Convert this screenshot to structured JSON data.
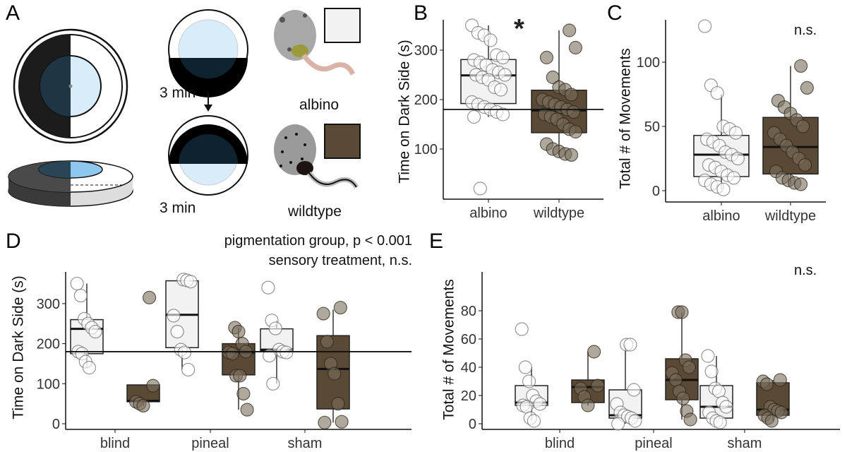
{
  "panel_a": {
    "label": "A",
    "time1": "3 min",
    "time2": "3 min",
    "albino": "albino",
    "wildtype": "wildtype"
  },
  "colors": {
    "albino": "#f2f2f2",
    "wildtype": "#5a4a35",
    "albino_point": "#ffffff",
    "wildtype_point": "#7a6e5c"
  },
  "chart_data": [
    {
      "panel": "B",
      "type": "box",
      "ylabel": "Time on Dark Side (s)",
      "categories": [
        "albino",
        "wildtype"
      ],
      "yticks": [
        100,
        200,
        300
      ],
      "ylim": [
        0,
        360
      ],
      "reference_line": 180,
      "annotation": "*",
      "series": [
        {
          "cat": "albino",
          "group": "albino",
          "q1": 192,
          "median": 249,
          "q3": 281,
          "wlo": 165,
          "whi": 350,
          "points": [
            350,
            335,
            330,
            320,
            290,
            285,
            280,
            275,
            270,
            260,
            255,
            250,
            250,
            245,
            240,
            225,
            220,
            195,
            190,
            185,
            180,
            175,
            170,
            165,
            20
          ]
        },
        {
          "cat": "wildtype",
          "group": "wildtype",
          "q1": 133,
          "median": 178,
          "q3": 219,
          "wlo": 88,
          "whi": 340,
          "points": [
            340,
            305,
            285,
            245,
            225,
            220,
            210,
            200,
            195,
            190,
            185,
            180,
            175,
            170,
            165,
            160,
            150,
            140,
            135,
            110,
            100,
            95,
            90,
            88
          ]
        }
      ]
    },
    {
      "panel": "C",
      "type": "box",
      "ylabel": "Total # of Movements",
      "categories": [
        "albino",
        "wildtype"
      ],
      "yticks": [
        0,
        50,
        100
      ],
      "ylim": [
        0,
        130
      ],
      "annotation": "n.s.",
      "series": [
        {
          "cat": "albino",
          "group": "albino",
          "q1": 11,
          "median": 28,
          "q3": 43,
          "wlo": 1,
          "whi": 75,
          "points": [
            128,
            82,
            76,
            50,
            48,
            45,
            40,
            38,
            35,
            30,
            28,
            25,
            20,
            18,
            15,
            12,
            10,
            8,
            5,
            3,
            1
          ]
        },
        {
          "cat": "wildtype",
          "group": "wildtype",
          "q1": 13,
          "median": 34,
          "q3": 57,
          "wlo": 5,
          "whi": 97,
          "points": [
            97,
            80,
            70,
            65,
            60,
            55,
            50,
            45,
            40,
            35,
            30,
            25,
            20,
            15,
            10,
            8,
            6,
            5
          ]
        }
      ]
    },
    {
      "panel": "D",
      "type": "box",
      "ylabel": "Time on Dark Side (s)",
      "categories": [
        "blind",
        "pineal",
        "sham"
      ],
      "yticks": [
        0,
        100,
        200,
        300
      ],
      "ylim": [
        0,
        370
      ],
      "reference_line": 180,
      "annotation": [
        "pigmentation group, p < 0.001",
        "sensory treatment, n.s."
      ],
      "series": [
        {
          "cat": "blind",
          "group": "albino",
          "q1": 175,
          "median": 237,
          "q3": 260,
          "wlo": 140,
          "whi": 350,
          "points": [
            350,
            320,
            262,
            250,
            240,
            230,
            180,
            175,
            155,
            140
          ]
        },
        {
          "cat": "blind",
          "group": "wildtype",
          "q1": 55,
          "median": 57,
          "q3": 97,
          "wlo": 45,
          "whi": 97,
          "points": [
            315,
            95,
            55,
            50,
            45
          ]
        },
        {
          "cat": "pineal",
          "group": "albino",
          "q1": 190,
          "median": 272,
          "q3": 357,
          "wlo": 135,
          "whi": 360,
          "points": [
            360,
            358,
            355,
            270,
            230,
            185,
            178,
            135
          ]
        },
        {
          "cat": "pineal",
          "group": "wildtype",
          "q1": 122,
          "median": 178,
          "q3": 200,
          "wlo": 35,
          "whi": 240,
          "points": [
            240,
            230,
            200,
            180,
            178,
            175,
            120,
            120,
            75,
            35
          ]
        },
        {
          "cat": "sham",
          "group": "albino",
          "q1": 182,
          "median": 185,
          "q3": 237,
          "wlo": 100,
          "whi": 258,
          "points": [
            340,
            258,
            238,
            185,
            180,
            178,
            170,
            100
          ]
        },
        {
          "cat": "sham",
          "group": "wildtype",
          "q1": 37,
          "median": 137,
          "q3": 220,
          "wlo": 3,
          "whi": 285,
          "points": [
            290,
            275,
            205,
            150,
            125,
            50,
            5,
            3
          ]
        }
      ]
    },
    {
      "panel": "E",
      "type": "box",
      "ylabel": "Total # of Movements",
      "categories": [
        "blind",
        "pineal",
        "sham"
      ],
      "yticks": [
        0,
        20,
        40,
        60,
        80
      ],
      "ylim": [
        0,
        82
      ],
      "annotation": "n.s.",
      "series": [
        {
          "cat": "blind",
          "group": "albino",
          "q1": 13,
          "median": 15,
          "q3": 27,
          "wlo": 2,
          "whi": 40,
          "points": [
            67,
            40,
            30,
            20,
            16,
            14,
            13,
            12,
            4,
            2
          ]
        },
        {
          "cat": "blind",
          "group": "wildtype",
          "q1": 15,
          "median": 26,
          "q3": 31,
          "wlo": 13,
          "whi": 51,
          "points": [
            51,
            27,
            25,
            19,
            13
          ]
        },
        {
          "cat": "pineal",
          "group": "albino",
          "q1": 4,
          "median": 6,
          "q3": 24,
          "wlo": 0,
          "whi": 56,
          "points": [
            56,
            56,
            24,
            14,
            8,
            6,
            5,
            4,
            2,
            0
          ]
        },
        {
          "cat": "pineal",
          "group": "wildtype",
          "q1": 17,
          "median": 31,
          "q3": 46,
          "wlo": 3,
          "whi": 79,
          "points": [
            79,
            79,
            45,
            40,
            36,
            31,
            23,
            18,
            9,
            3
          ]
        },
        {
          "cat": "sham",
          "group": "albino",
          "q1": 4,
          "median": 12,
          "q3": 27,
          "wlo": 1,
          "whi": 48,
          "points": [
            48,
            37,
            25,
            23,
            15,
            12,
            8,
            4,
            2,
            1
          ]
        },
        {
          "cat": "sham",
          "group": "wildtype",
          "q1": 6,
          "median": 10,
          "q3": 29,
          "wlo": 2,
          "whi": 31,
          "points": [
            31,
            30,
            28,
            12,
            10,
            9,
            8,
            6,
            4,
            2
          ]
        }
      ]
    }
  ]
}
